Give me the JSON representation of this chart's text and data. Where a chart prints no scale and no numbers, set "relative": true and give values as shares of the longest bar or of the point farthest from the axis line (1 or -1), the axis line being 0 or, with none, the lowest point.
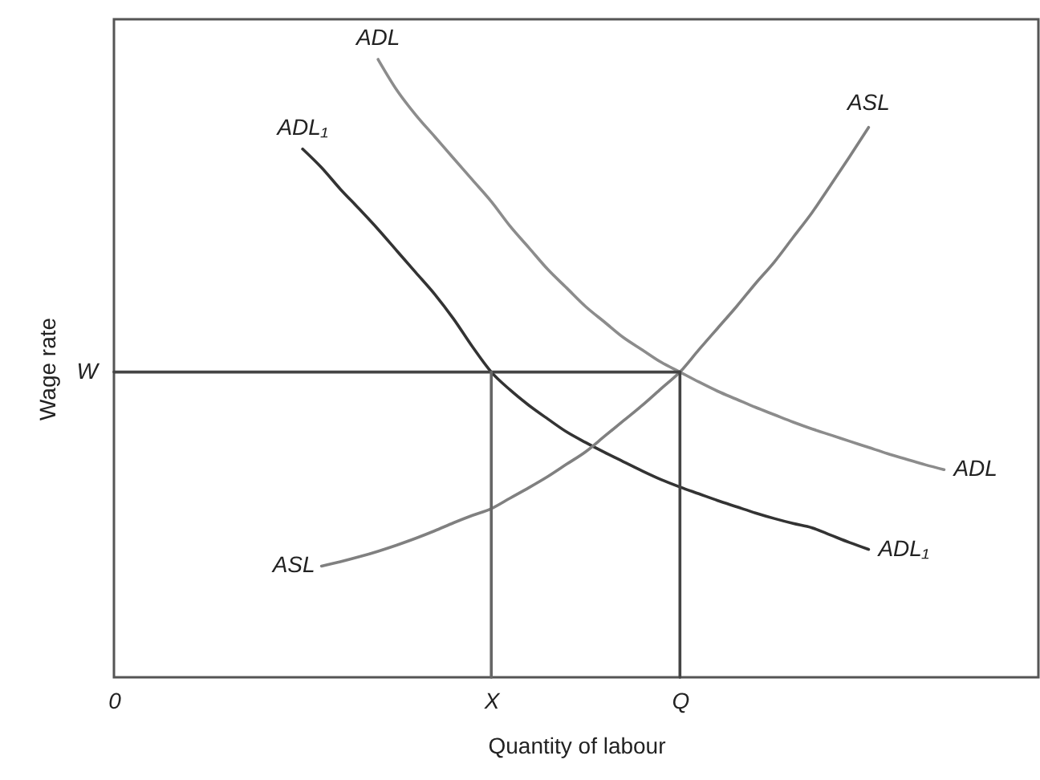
{
  "chart_data": {
    "type": "line",
    "relative": true,
    "xlabel": "Quantity of labour",
    "ylabel": "Wage rate",
    "categories": [
      "0",
      null,
      null,
      null,
      null,
      null,
      null,
      null,
      null,
      null,
      null,
      null,
      null,
      null,
      null,
      null,
      null,
      null,
      null,
      null,
      "X",
      null,
      null,
      null,
      null,
      null,
      null,
      null,
      null,
      null,
      "Q",
      null,
      null,
      null,
      null,
      null,
      null,
      null,
      null,
      null,
      null,
      null,
      null,
      null,
      null,
      null,
      null,
      null,
      null,
      null
    ],
    "series": [
      {
        "name": "ADL",
        "color": "#8c8c8c",
        "values": [
          null,
          null,
          null,
          null,
          null,
          null,
          null,
          null,
          null,
          null,
          null,
          null,
          null,
          null,
          1.0,
          0.95,
          0.91,
          0.875,
          0.84,
          0.805,
          0.77,
          0.73,
          0.695,
          0.66,
          0.63,
          0.6,
          0.575,
          0.55,
          0.53,
          0.51,
          0.494,
          0.478,
          0.463,
          0.45,
          0.437,
          0.425,
          0.413,
          0.402,
          0.392,
          0.382,
          0.372,
          0.362,
          0.353,
          0.344,
          0.336,
          null,
          null,
          null,
          null,
          null
        ]
      },
      {
        "name": "ADL₁",
        "color": "#333333",
        "values": [
          null,
          null,
          null,
          null,
          null,
          null,
          null,
          null,
          null,
          null,
          0.855,
          0.825,
          0.79,
          0.758,
          0.725,
          0.69,
          0.655,
          0.62,
          0.58,
          0.535,
          0.494,
          0.465,
          0.44,
          0.418,
          0.397,
          0.38,
          0.364,
          0.349,
          0.334,
          0.32,
          0.308,
          0.297,
          0.286,
          0.276,
          0.266,
          0.257,
          0.249,
          0.242,
          0.23,
          0.218,
          0.207,
          null,
          null,
          null,
          null,
          null,
          null,
          null,
          null,
          null
        ]
      },
      {
        "name": "ASL",
        "color": "#808080",
        "values": [
          null,
          null,
          null,
          null,
          null,
          null,
          null,
          null,
          null,
          null,
          null,
          0.18,
          0.187,
          0.195,
          0.204,
          0.214,
          0.225,
          0.237,
          0.25,
          0.262,
          0.273,
          0.29,
          0.307,
          0.325,
          0.345,
          0.365,
          0.39,
          0.415,
          0.44,
          0.467,
          0.494,
          0.53,
          0.565,
          0.6,
          0.637,
          0.672,
          0.712,
          0.752,
          0.797,
          0.843,
          0.89,
          null,
          null,
          null,
          null,
          null,
          null,
          null,
          null,
          null
        ]
      },
      {
        "color": "#444444",
        "values": [
          0.494,
          0.494,
          0.494,
          0.494,
          0.494,
          0.494,
          0.494,
          0.494,
          0.494,
          0.494,
          0.494,
          0.494,
          0.494,
          0.494,
          0.494,
          0.494,
          0.494,
          0.494,
          0.494,
          0.494,
          0.494,
          0.494,
          0.494,
          0.494,
          0.494,
          0.494,
          0.494,
          0.494,
          0.494,
          0.494,
          0.494,
          null,
          null,
          null,
          null,
          null,
          null,
          null,
          null,
          null,
          null,
          null,
          null,
          null,
          null,
          null,
          null,
          null,
          null,
          null
        ]
      },
      {
        "color": "#666666",
        "x": [
          "X",
          "X"
        ],
        "values": [
          0,
          0.494
        ]
      },
      {
        "color": "#444444",
        "x": [
          "Q",
          "Q"
        ],
        "values": [
          0,
          0.494
        ]
      }
    ],
    "annotations": [
      {
        "text": "W",
        "x": "0",
        "y": 0.494
      }
    ]
  }
}
